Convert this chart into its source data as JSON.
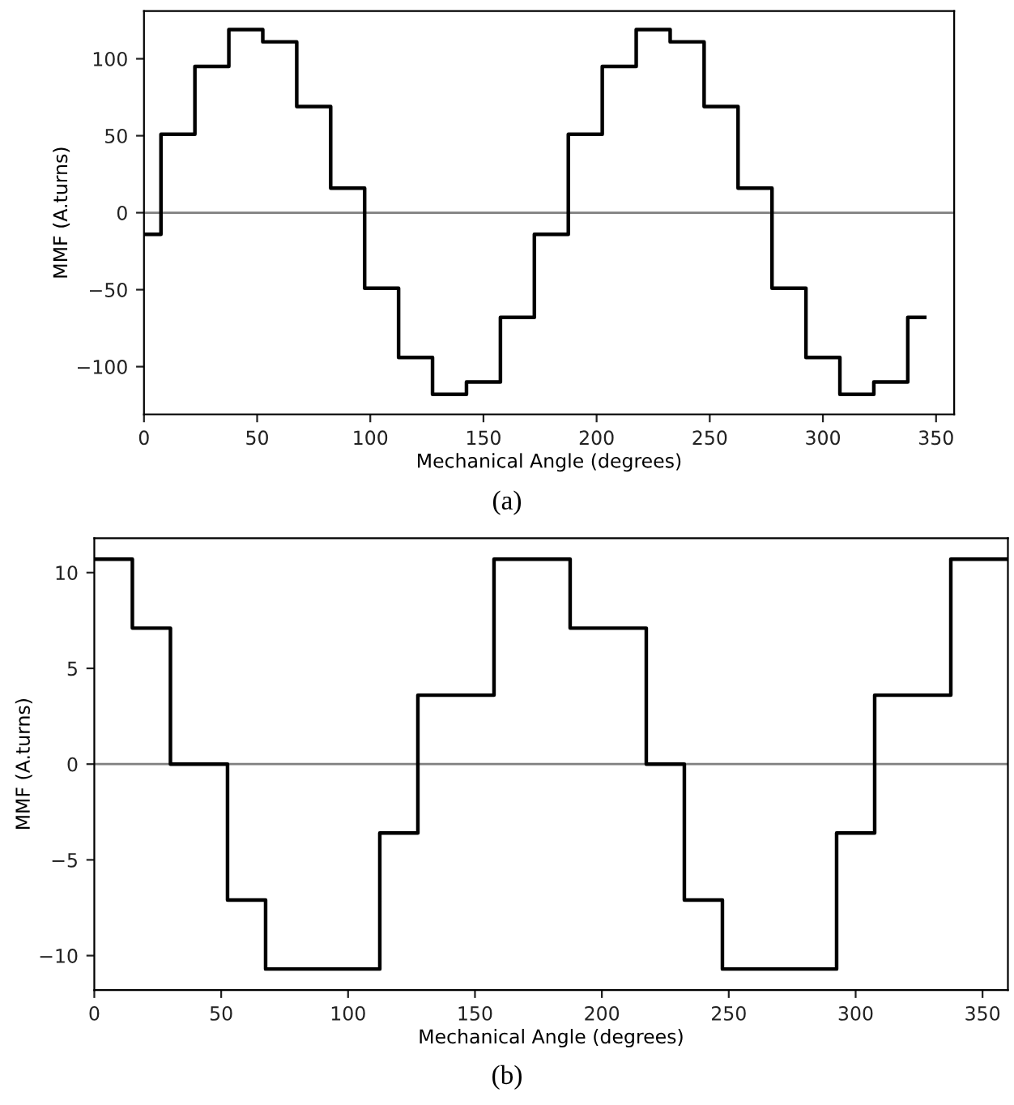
{
  "chart_data": [
    {
      "type": "step",
      "xlabel": "Mechanical Angle (degrees)",
      "ylabel": "MMF (A.turns)",
      "series": [
        {
          "color": "#000000",
          "x": [
            0,
            7.5,
            22.5,
            37.5,
            52.5,
            67.5,
            82.5,
            97.5,
            112.5,
            127.5,
            142.5,
            157.5,
            172.5,
            187.5,
            202.5,
            217.5,
            232.5,
            247.5,
            262.5,
            277.5,
            292.5,
            307.5,
            322.5,
            337.5,
            345
          ],
          "values": [
            -14,
            51,
            95,
            119,
            111,
            69,
            16,
            -49,
            -94,
            -118,
            -110,
            -68,
            -14,
            51,
            95,
            119,
            111,
            69,
            16,
            -49,
            -94,
            -118,
            -110,
            -68,
            -68
          ]
        }
      ],
      "xlim": [
        0,
        358
      ],
      "xticks": [
        0,
        50,
        100,
        150,
        200,
        250,
        300,
        350
      ],
      "ylim": [
        -131,
        131
      ],
      "yticks": [
        -100,
        -50,
        0,
        50,
        100
      ],
      "ref_lines": [
        {
          "axis": "y",
          "value": 0,
          "color": "#808080"
        }
      ],
      "grid": false,
      "annotations": [
        "(a)"
      ]
    },
    {
      "type": "step",
      "xlabel": "Mechanical Angle (degrees)",
      "ylabel": "MMF (A.turns)",
      "series": [
        {
          "color": "#000000",
          "x": [
            0,
            15,
            30,
            52.5,
            67.5,
            112.5,
            127.5,
            157.5,
            187.5,
            217.5,
            232.5,
            247.5,
            292.5,
            307.5,
            337.5,
            360
          ],
          "values": [
            10.7,
            7.1,
            0,
            -7.1,
            -10.7,
            -3.6,
            3.6,
            10.7,
            7.1,
            0,
            -7.1,
            -10.7,
            -3.6,
            3.6,
            10.7,
            10.7
          ]
        }
      ],
      "xlim": [
        0,
        360
      ],
      "xticks": [
        0,
        50,
        100,
        150,
        200,
        250,
        300,
        350
      ],
      "ylim": [
        -11.8,
        11.8
      ],
      "yticks": [
        -10,
        -5,
        0,
        5,
        10
      ],
      "ref_lines": [
        {
          "axis": "y",
          "value": 0,
          "color": "#808080"
        }
      ],
      "grid": false,
      "annotations": [
        "(b)"
      ]
    }
  ]
}
